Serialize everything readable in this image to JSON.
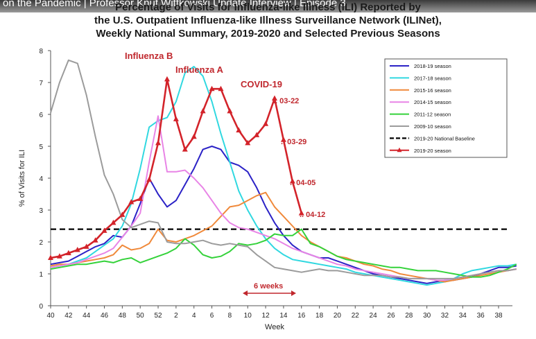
{
  "video": {
    "title": "on the Pandemic | Professor Knut Wittkowski Update Interview | Episode 3"
  },
  "chart_data": {
    "type": "line",
    "title": "Percentage of Visits for Influenza-like Illness (ILI) Reported by",
    "subtitle": "the U.S. Outpatient Influenza-like Illness Surveillance Network (ILINet),",
    "subtitle2": "Weekly National Summary, 2019-2020 and Selected Previous Seasons",
    "xlabel": "Week",
    "ylabel": "% of Visits for ILI",
    "ylim": [
      0,
      8
    ],
    "yticks": [
      "0",
      "1",
      "2",
      "3",
      "4",
      "5",
      "6",
      "7",
      "8"
    ],
    "xticks": [
      "40",
      "42",
      "44",
      "46",
      "48",
      "50",
      "52",
      "2",
      "4",
      "6",
      "8",
      "10",
      "12",
      "14",
      "16",
      "18",
      "20",
      "22",
      "24",
      "26",
      "28",
      "30",
      "32",
      "34",
      "36",
      "38"
    ],
    "legend_position": "top-right",
    "baseline": {
      "name": "2019-20 National Baseline",
      "value": 2.4
    },
    "series": [
      {
        "name": "2018-19 season",
        "color": "#2b22c6",
        "values": [
          1.3,
          1.35,
          1.4,
          1.55,
          1.7,
          1.85,
          1.95,
          2.2,
          2.15,
          2.5,
          3.2,
          4.0,
          3.5,
          3.1,
          3.3,
          3.8,
          4.3,
          4.9,
          5.0,
          4.9,
          4.5,
          4.4,
          4.2,
          3.7,
          3.1,
          2.6,
          2.2,
          1.9,
          1.7,
          1.6,
          1.5,
          1.5,
          1.4,
          1.3,
          1.2,
          1.1,
          1.0,
          0.95,
          0.9,
          0.85,
          0.8,
          0.75,
          0.7,
          0.75,
          0.8,
          0.8,
          0.85,
          0.9,
          1.0,
          1.1,
          1.2,
          1.2,
          1.25
        ]
      },
      {
        "name": "2017-18 season",
        "color": "#30d8e0",
        "values": [
          1.2,
          1.25,
          1.3,
          1.4,
          1.5,
          1.7,
          1.9,
          2.1,
          2.5,
          3.2,
          4.3,
          5.6,
          5.8,
          5.9,
          6.4,
          7.3,
          7.5,
          7.2,
          6.4,
          5.4,
          4.5,
          3.6,
          3.0,
          2.5,
          2.1,
          1.8,
          1.6,
          1.45,
          1.4,
          1.35,
          1.3,
          1.25,
          1.2,
          1.15,
          1.05,
          1.0,
          0.95,
          0.9,
          0.85,
          0.8,
          0.75,
          0.7,
          0.65,
          0.7,
          0.75,
          0.85,
          1.0,
          1.1,
          1.15,
          1.2,
          1.25,
          1.25,
          1.3
        ]
      },
      {
        "name": "2015-16 season",
        "color": "#f0893a",
        "values": [
          1.25,
          1.3,
          1.3,
          1.35,
          1.4,
          1.45,
          1.5,
          1.6,
          1.9,
          1.75,
          1.8,
          1.95,
          2.4,
          2.05,
          2.0,
          2.1,
          2.2,
          2.35,
          2.5,
          2.8,
          3.1,
          3.15,
          3.3,
          3.45,
          3.55,
          3.1,
          2.8,
          2.5,
          2.2,
          2.0,
          1.85,
          1.7,
          1.55,
          1.5,
          1.4,
          1.3,
          1.25,
          1.15,
          1.1,
          1.0,
          0.95,
          0.9,
          0.85,
          0.8,
          0.75,
          0.8,
          0.85,
          0.9,
          0.95,
          1.0,
          1.05,
          1.1,
          1.15
        ]
      },
      {
        "name": "2014-15 season",
        "color": "#e884e6",
        "values": [
          1.2,
          1.25,
          1.3,
          1.35,
          1.45,
          1.55,
          1.65,
          1.8,
          2.15,
          2.5,
          2.9,
          4.5,
          5.95,
          4.2,
          4.2,
          4.25,
          4.0,
          3.7,
          3.3,
          2.9,
          2.6,
          2.45,
          2.4,
          2.3,
          2.2,
          2.1,
          1.95,
          1.8,
          1.7,
          1.6,
          1.5,
          1.4,
          1.3,
          1.25,
          1.15,
          1.1,
          1.05,
          1.0,
          0.95,
          0.9,
          0.85,
          0.85,
          0.85,
          0.8,
          0.8,
          0.85,
          0.9,
          0.95,
          1.0,
          1.05,
          1.1,
          1.1,
          1.15
        ]
      },
      {
        "name": "2011-12 season",
        "color": "#34d23a",
        "values": [
          1.15,
          1.2,
          1.25,
          1.3,
          1.3,
          1.35,
          1.4,
          1.35,
          1.45,
          1.5,
          1.35,
          1.45,
          1.55,
          1.65,
          1.8,
          2.1,
          1.9,
          1.6,
          1.5,
          1.55,
          1.7,
          1.95,
          1.9,
          1.95,
          2.05,
          2.25,
          2.2,
          2.2,
          2.4,
          1.95,
          1.85,
          1.7,
          1.55,
          1.45,
          1.4,
          1.35,
          1.3,
          1.25,
          1.2,
          1.2,
          1.15,
          1.1,
          1.1,
          1.1,
          1.05,
          1.0,
          0.95,
          0.9,
          0.9,
          0.95,
          1.05,
          1.15,
          1.3
        ]
      },
      {
        "name": "2009-10 season",
        "color": "#9b9b9b",
        "values": [
          6.05,
          7.0,
          7.7,
          7.6,
          6.6,
          5.3,
          4.1,
          3.5,
          2.7,
          2.45,
          2.55,
          2.65,
          2.6,
          2.0,
          1.95,
          1.95,
          2.0,
          2.05,
          1.95,
          1.9,
          1.95,
          1.9,
          1.85,
          1.6,
          1.4,
          1.2,
          1.15,
          1.1,
          1.05,
          1.1,
          1.15,
          1.1,
          1.1,
          1.05,
          1.0,
          0.95,
          0.95,
          0.95,
          0.9,
          0.9,
          0.85,
          0.85,
          0.85,
          0.85,
          0.85,
          0.85,
          0.9,
          0.95,
          1.0,
          1.05,
          1.1,
          1.1,
          1.15
        ]
      },
      {
        "name": "2019-20 season",
        "color": "#d3232a",
        "values": [
          1.5,
          1.55,
          1.65,
          1.75,
          1.85,
          2.05,
          2.35,
          2.6,
          2.85,
          3.25,
          3.35,
          3.95,
          5.1,
          7.1,
          5.85,
          4.9,
          5.3,
          6.1,
          6.8,
          6.8,
          6.1,
          5.5,
          5.1,
          5.35,
          5.7,
          6.5,
          5.2,
          3.9,
          2.9
        ]
      }
    ],
    "annotations": {
      "influenza_b": "Influenza B",
      "influenza_a": "Influenza A",
      "covid": "COVID-19",
      "d1": ".. 03-22",
      "d2": ".. 03-29",
      "d3": ".. 04-05",
      "d4": ".. 04-12",
      "six_weeks": "6 weeks"
    }
  }
}
